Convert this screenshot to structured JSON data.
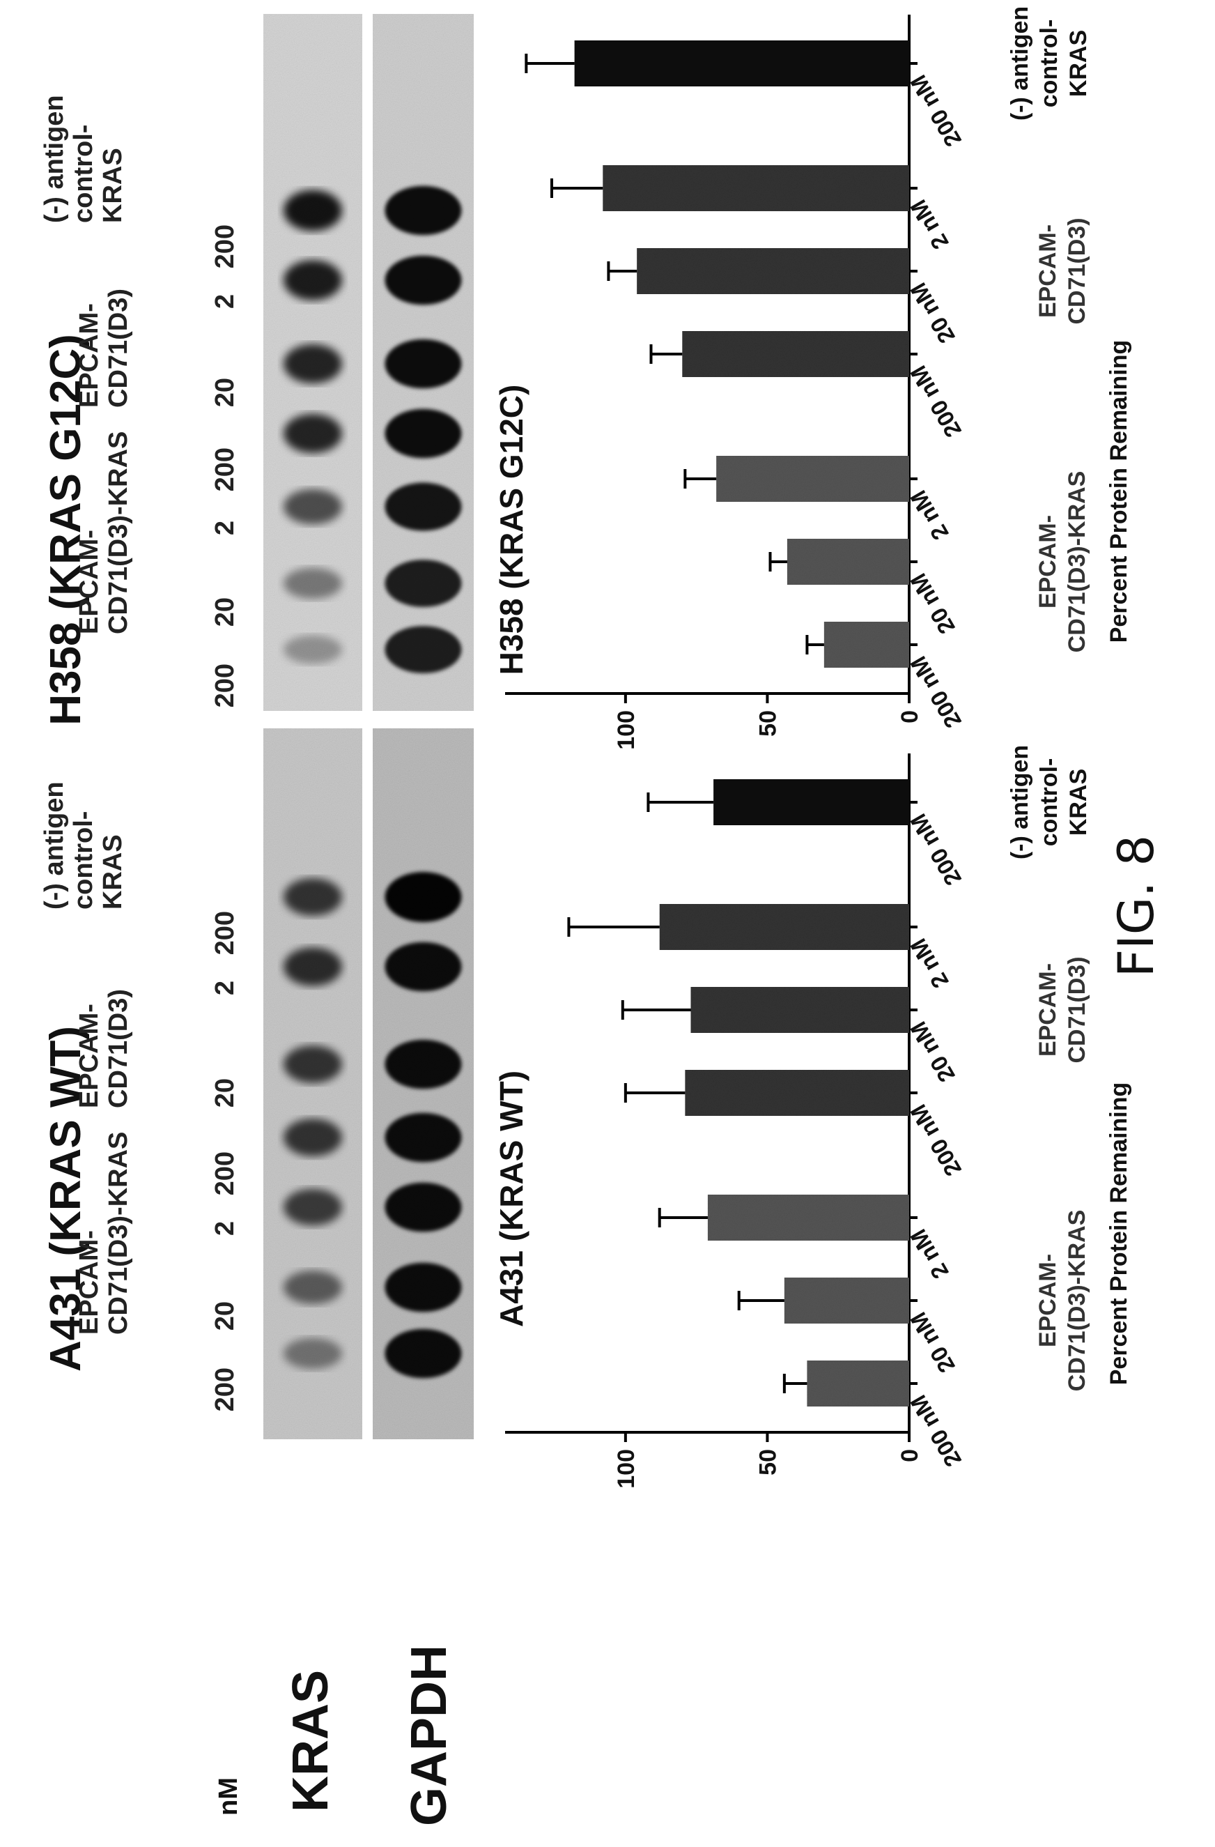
{
  "figure_label": "FIG. 8",
  "blot": {
    "conc_unit": "nM",
    "row_labels": [
      "KRAS",
      "GAPDH"
    ],
    "panels": [
      {
        "title": "A431 (KRAS WT)",
        "groups": [
          {
            "line1": "EPCAM-",
            "line2": "CD71(D3)-KRAS"
          },
          {
            "line1": "EPCAM-",
            "line2": "CD71(D3)"
          },
          {
            "line1": "(-) antigen",
            "line2": "control-",
            "line3": "KRAS"
          }
        ],
        "lanes": [
          "200",
          "20",
          "2",
          "200",
          "20",
          "2",
          "200"
        ],
        "kras_intensity": [
          0.35,
          0.5,
          0.7,
          0.75,
          0.75,
          0.8,
          0.75
        ],
        "gapdh_intensity": [
          0.95,
          0.95,
          0.95,
          0.95,
          0.95,
          0.95,
          1.0
        ]
      },
      {
        "title": "H358 (KRAS G12C)",
        "groups": [
          {
            "line1": "EPCAM-",
            "line2": "CD71(D3)-KRAS"
          },
          {
            "line1": "EPCAM-",
            "line2": "CD71(D3)"
          },
          {
            "line1": "(-) antigen",
            "line2": "control-",
            "line3": "KRAS"
          }
        ],
        "lanes": [
          "200",
          "20",
          "2",
          "200",
          "20",
          "2",
          "200"
        ],
        "kras_intensity": [
          0.2,
          0.35,
          0.6,
          0.85,
          0.85,
          0.9,
          0.95
        ],
        "gapdh_intensity": [
          0.85,
          0.85,
          0.9,
          0.95,
          0.95,
          0.95,
          0.95
        ]
      }
    ]
  },
  "chart_data": [
    {
      "type": "bar",
      "title": "A431 (KRAS WT)",
      "ylabel": "Percent Protein Remaining",
      "ylim": [
        0,
        140
      ],
      "yticks": [
        "0",
        "50",
        "100"
      ],
      "ytick_values": [
        0,
        50,
        100
      ],
      "categories": [
        "200 nM",
        "20 nM",
        "2 nM",
        "200 nM",
        "20 nM",
        "2 nM",
        "200 nM"
      ],
      "values": [
        36,
        44,
        71,
        79,
        77,
        88,
        69
      ],
      "errors": [
        8,
        16,
        17,
        21,
        24,
        32,
        23
      ],
      "bar_colors": [
        "#555555",
        "#555555",
        "#555555",
        "#333333",
        "#333333",
        "#333333",
        "#111111"
      ],
      "groups": [
        {
          "line1": "EPCAM-",
          "line2": "CD71(D3)-KRAS"
        },
        {
          "line1": "EPCAM-",
          "line2": "CD71(D3)"
        },
        {
          "line1": "(-) antigen",
          "line2": "control-",
          "line3": "KRAS"
        }
      ]
    },
    {
      "type": "bar",
      "title": "H358 (KRAS G12C)",
      "ylabel": "Percent Protein Remaining",
      "ylim": [
        0,
        140
      ],
      "yticks": [
        "0",
        "50",
        "100"
      ],
      "ytick_values": [
        0,
        50,
        100
      ],
      "categories": [
        "200 nM",
        "20 nM",
        "2 nM",
        "200 nM",
        "20 nM",
        "2 nM",
        "200 nM"
      ],
      "values": [
        30,
        43,
        68,
        80,
        96,
        108,
        118
      ],
      "errors": [
        6,
        6,
        11,
        11,
        10,
        18,
        17
      ],
      "bar_colors": [
        "#555555",
        "#555555",
        "#555555",
        "#333333",
        "#333333",
        "#333333",
        "#111111"
      ],
      "groups": [
        {
          "line1": "EPCAM-",
          "line2": "CD71(D3)-KRAS"
        },
        {
          "line1": "EPCAM-",
          "line2": "CD71(D3)"
        },
        {
          "line1": "(-) antigen",
          "line2": "control-",
          "line3": "KRAS"
        }
      ]
    }
  ]
}
